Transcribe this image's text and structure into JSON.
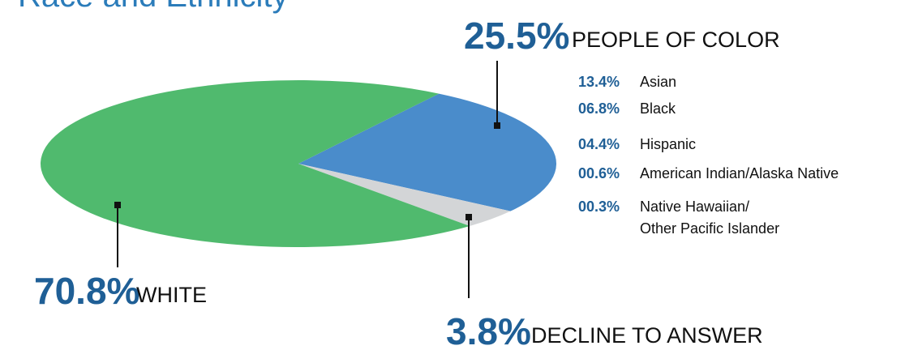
{
  "chart_data": {
    "type": "pie",
    "title": "Race and Ethnicity",
    "categories": [
      "PEOPLE OF COLOR",
      "DECLINE TO ANSWER",
      "WHITE"
    ],
    "values": [
      25.5,
      3.8,
      70.8
    ],
    "value_labels": [
      "25.5%",
      "3.8%",
      "70.8%"
    ],
    "colors": [
      "#4a8ccb",
      "#d3d5d7",
      "#50ba6e"
    ],
    "breakdown": [
      {
        "label": "13.4%",
        "name": [
          "Asian"
        ]
      },
      {
        "label": "06.8%",
        "name": [
          "Black"
        ]
      },
      {
        "label": "04.4%",
        "name": [
          "Hispanic"
        ]
      },
      {
        "label": "00.6%",
        "name": [
          "American Indian/Alaska Native"
        ]
      },
      {
        "label": "00.3%",
        "name": [
          "Native Hawaiian/",
          "Other Pacific Islander"
        ]
      }
    ]
  }
}
